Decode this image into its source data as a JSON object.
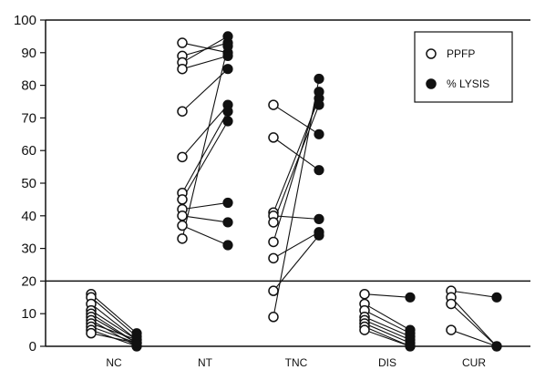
{
  "chart_data": {
    "type": "scatter",
    "title": "",
    "xlabel": "",
    "ylabel": "",
    "ylim": [
      0,
      100
    ],
    "yticks": [
      0,
      10,
      20,
      30,
      40,
      50,
      60,
      70,
      80,
      90,
      100
    ],
    "threshold": 20,
    "grid": false,
    "legend_position": "top-right",
    "categories": [
      "NC",
      "NT",
      "TNC",
      "DIS",
      "CUR"
    ],
    "series": [
      {
        "name": "PPFP",
        "marker": "open-circle",
        "color": "#111111"
      },
      {
        "name": "% LYSIS",
        "marker": "filled-circle",
        "color": "#111111"
      }
    ],
    "groups": [
      {
        "category": "NC",
        "pairs": [
          [
            16,
            4
          ],
          [
            15,
            3
          ],
          [
            13,
            2
          ],
          [
            11,
            2
          ],
          [
            10,
            1
          ],
          [
            9,
            1
          ],
          [
            8,
            0
          ],
          [
            7,
            2
          ],
          [
            6,
            1
          ],
          [
            5,
            0
          ],
          [
            4,
            1
          ]
        ]
      },
      {
        "category": "NT",
        "pairs": [
          [
            93,
            90
          ],
          [
            89,
            93
          ],
          [
            87,
            95
          ],
          [
            85,
            89
          ],
          [
            72,
            85
          ],
          [
            58,
            74
          ],
          [
            47,
            72
          ],
          [
            45,
            69
          ],
          [
            42,
            44
          ],
          [
            40,
            38
          ],
          [
            37,
            31
          ],
          [
            33,
            92
          ]
        ]
      },
      {
        "category": "TNC",
        "pairs": [
          [
            74,
            65
          ],
          [
            64,
            54
          ],
          [
            41,
            76
          ],
          [
            40,
            39
          ],
          [
            38,
            74
          ],
          [
            32,
            78
          ],
          [
            27,
            35
          ],
          [
            17,
            34
          ],
          [
            9,
            82
          ]
        ]
      },
      {
        "category": "DIS",
        "pairs": [
          [
            16,
            15
          ],
          [
            13,
            5
          ],
          [
            11,
            4
          ],
          [
            9,
            3
          ],
          [
            8,
            2
          ],
          [
            7,
            1
          ],
          [
            6,
            0
          ],
          [
            5,
            0
          ]
        ]
      },
      {
        "category": "CUR",
        "pairs": [
          [
            17,
            15
          ],
          [
            15,
            0
          ],
          [
            13,
            0
          ],
          [
            5,
            0
          ]
        ]
      }
    ]
  }
}
